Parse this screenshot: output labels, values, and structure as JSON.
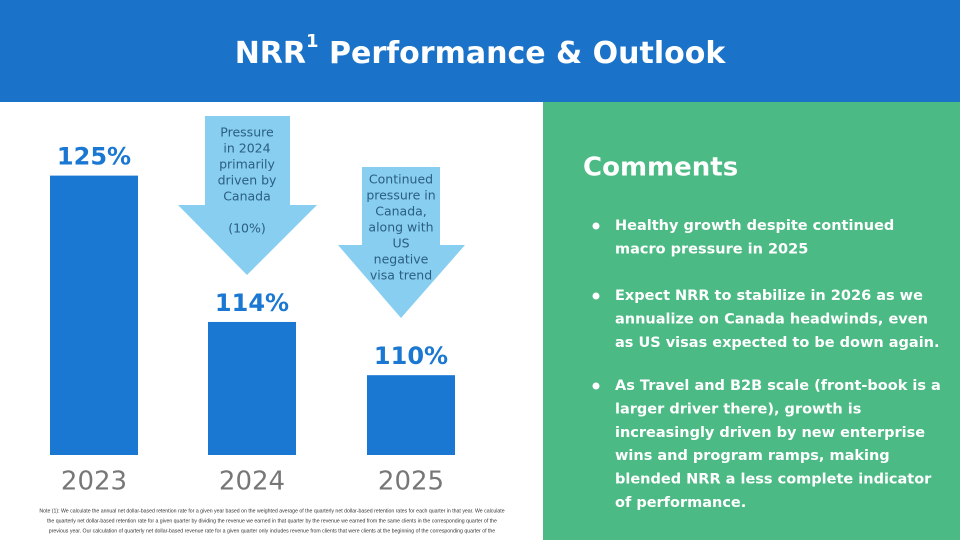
{
  "chart_data": {
    "type": "bar",
    "title": "NRR",
    "title_superscript": "1",
    "title_rest": " Performance & Outlook",
    "categories": [
      "2023",
      "2024",
      "2025"
    ],
    "values": [
      125,
      114,
      110
    ],
    "value_labels": [
      "125%",
      "114%",
      "110%"
    ],
    "color": "#1a78d2",
    "ylim": [
      104,
      127
    ],
    "annotations": [
      {
        "lines": [
          "Pressure",
          "in 2024",
          "primarily",
          "driven by",
          "Canada"
        ],
        "note": "(10%)"
      },
      {
        "lines": [
          "Continued",
          "pressure in",
          "Canada,",
          "along with",
          "US",
          "negative",
          "visa trend"
        ]
      }
    ],
    "comments": {
      "title": "Comments",
      "bullets": [
        [
          "Healthy growth despite continued",
          "macro pressure in 2025"
        ],
        [
          "Expect NRR to stabilize  in 2026 as we",
          "annualize on Canada headwinds, even",
          "as US visas expected to be down again."
        ],
        [
          "As Travel and B2B scale (front-book is a",
          "larger driver there), growth is",
          "increasingly driven by new enterprise",
          "wins and program ramps, making",
          "blended NRR a less complete indicator",
          "of performance."
        ]
      ]
    },
    "footnote": [
      "Note (1): We calculate the annual net dollar-based retention rate for a given year based on the weighted average of the quarterly net dollar-based retention rates for each quarter in that year. We calculate",
      "the quarterly net dollar-based retention rate for a given quarter by dividing the revenue we earned in that quarter by the revenue we earned from the same clients in the corresponding quarter of the",
      "previous year. Our calculation of quarterly net dollar-based revenue rate for a given quarter only includes revenue from clients that were clients at the beginning of the corresponding quarter of the"
    ]
  }
}
